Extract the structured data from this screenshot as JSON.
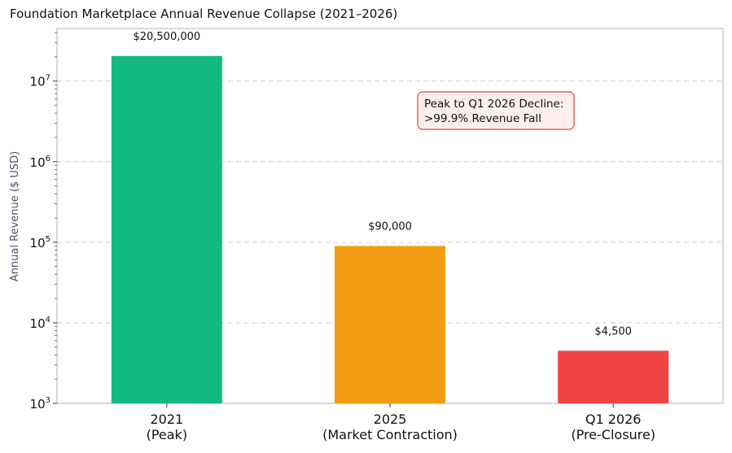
{
  "chart_data": {
    "type": "bar",
    "title": "Foundation Marketplace Annual Revenue Collapse (2021–2026)",
    "xlabel": "",
    "ylabel": "Annual Revenue ($ USD)",
    "yscale": "log",
    "ylim": [
      1000,
      45000000
    ],
    "grid": "horizontal dashed",
    "categories": [
      [
        "2021",
        "(Peak)"
      ],
      [
        "2025",
        "(Market Contraction)"
      ],
      [
        "Q1 2026",
        "(Pre-Closure)"
      ]
    ],
    "values": [
      20500000,
      90000,
      4500
    ],
    "data_labels": [
      "$20,500,000",
      "$90,000",
      "$4,500"
    ],
    "colors": [
      "#12b981",
      "#f39c12",
      "#ef4444"
    ],
    "y_ticks": [
      {
        "base": "10",
        "exp": "3",
        "value": 1000
      },
      {
        "base": "10",
        "exp": "4",
        "value": 10000
      },
      {
        "base": "10",
        "exp": "5",
        "value": 100000
      },
      {
        "base": "10",
        "exp": "6",
        "value": 1000000
      },
      {
        "base": "10",
        "exp": "7",
        "value": 10000000
      }
    ],
    "annotation": {
      "lines": [
        "Peak to Q1 2026 Decline:",
        ">99.9% Revenue Fall"
      ],
      "border_color": "#e53e3e",
      "fill_color": "#fdeeee"
    }
  }
}
